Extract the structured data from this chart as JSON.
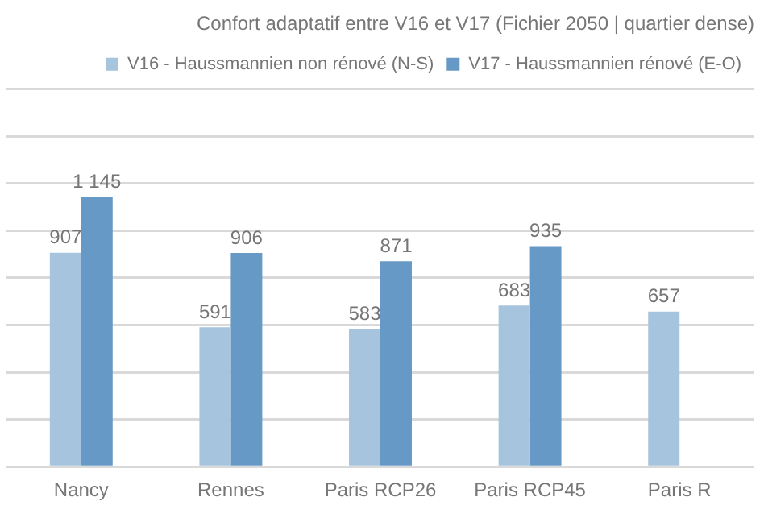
{
  "chart_data": {
    "type": "bar",
    "title": "Confort adaptatif entre V16 et V17 (Fichier 2050 | quartier dense)",
    "categories": [
      "Nancy",
      "Rennes",
      "Paris RCP26",
      "Paris RCP45",
      "Paris R"
    ],
    "series": [
      {
        "name": "V16 - Haussmannien non rénové (N-S)",
        "color": "#a6c4de",
        "values": [
          907,
          591,
          583,
          683,
          657
        ]
      },
      {
        "name": "V17 - Haussmannien rénové (E-O)",
        "color": "#6699c6",
        "values": [
          1145,
          906,
          871,
          935,
          null
        ]
      }
    ],
    "ylim": [
      0,
      1600
    ],
    "yticks": [
      {
        "value": 0,
        "label": null
      },
      {
        "value": 200,
        "label": null
      },
      {
        "value": 400,
        "label": null
      },
      {
        "value": 600,
        "label": null
      },
      {
        "value": 800,
        "label": null
      },
      {
        "value": 1000,
        "label": null
      },
      {
        "value": 1200,
        "label": null
      },
      {
        "value": 1400,
        "label": null
      },
      {
        "value": 1600,
        "label": null
      }
    ],
    "grid": "y",
    "legend": "top right",
    "tick_labels": "x",
    "data_labels": true
  }
}
